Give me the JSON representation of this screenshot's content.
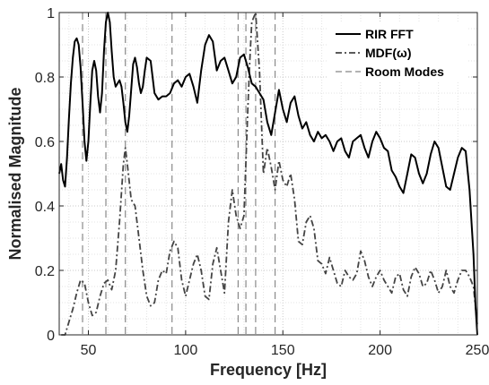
{
  "chart_data": {
    "type": "line",
    "title": "",
    "xlabel": "Frequency [Hz]",
    "ylabel": "Normalised Magnitude",
    "xlim": [
      35,
      250
    ],
    "ylim": [
      0,
      1
    ],
    "xticks": [
      50,
      100,
      150,
      200,
      250
    ],
    "yticks": [
      0,
      0.2,
      0.4,
      0.6,
      0.8,
      1
    ],
    "ytick_labels": [
      "0",
      "0.2",
      "0.4",
      "0.6",
      "0.8",
      "1"
    ],
    "grid": true,
    "grid_style": "dotted minor and major",
    "legend_position": "top-right",
    "room_modes": [
      47,
      59,
      69,
      93,
      127,
      131,
      136,
      146
    ],
    "series": [
      {
        "name": "RIR FFT",
        "style": "solid",
        "color": "#000000",
        "x": [
          35,
          36,
          37,
          38,
          39,
          40,
          41,
          42,
          43,
          44,
          45,
          46,
          47,
          48,
          49,
          50,
          51,
          52,
          53,
          54,
          55,
          56,
          57,
          58,
          59,
          60,
          61,
          62,
          63,
          64,
          65,
          66,
          67,
          68,
          69,
          70,
          71,
          72,
          73,
          74,
          75,
          76,
          77,
          78,
          79,
          80,
          82,
          84,
          86,
          88,
          90,
          92,
          94,
          96,
          98,
          100,
          102,
          104,
          106,
          108,
          110,
          112,
          114,
          116,
          118,
          120,
          122,
          124,
          126,
          128,
          130,
          132,
          134,
          136,
          138,
          140,
          142,
          144,
          146,
          148,
          150,
          152,
          154,
          156,
          158,
          160,
          162,
          164,
          166,
          168,
          170,
          172,
          174,
          176,
          178,
          180,
          182,
          184,
          186,
          188,
          190,
          192,
          194,
          196,
          198,
          200,
          202,
          204,
          206,
          208,
          210,
          212,
          214,
          216,
          218,
          220,
          222,
          224,
          226,
          228,
          230,
          232,
          234,
          236,
          238,
          240,
          242,
          244,
          246,
          248,
          249,
          250
        ],
        "y": [
          0.5,
          0.53,
          0.48,
          0.46,
          0.55,
          0.67,
          0.78,
          0.86,
          0.91,
          0.92,
          0.9,
          0.83,
          0.72,
          0.6,
          0.54,
          0.6,
          0.72,
          0.82,
          0.85,
          0.82,
          0.74,
          0.69,
          0.75,
          0.88,
          0.97,
          1.0,
          0.97,
          0.88,
          0.8,
          0.77,
          0.78,
          0.79,
          0.77,
          0.72,
          0.66,
          0.63,
          0.68,
          0.76,
          0.84,
          0.86,
          0.83,
          0.78,
          0.75,
          0.77,
          0.82,
          0.86,
          0.85,
          0.75,
          0.73,
          0.74,
          0.74,
          0.75,
          0.78,
          0.79,
          0.77,
          0.8,
          0.81,
          0.77,
          0.72,
          0.82,
          0.9,
          0.93,
          0.91,
          0.82,
          0.85,
          0.86,
          0.82,
          0.78,
          0.8,
          0.86,
          0.87,
          0.83,
          0.78,
          0.77,
          0.75,
          0.73,
          0.66,
          0.62,
          0.69,
          0.76,
          0.7,
          0.66,
          0.72,
          0.74,
          0.68,
          0.64,
          0.66,
          0.62,
          0.6,
          0.63,
          0.61,
          0.62,
          0.6,
          0.57,
          0.6,
          0.61,
          0.57,
          0.55,
          0.6,
          0.61,
          0.62,
          0.58,
          0.55,
          0.6,
          0.63,
          0.61,
          0.58,
          0.57,
          0.51,
          0.49,
          0.46,
          0.44,
          0.5,
          0.56,
          0.55,
          0.5,
          0.47,
          0.5,
          0.56,
          0.6,
          0.58,
          0.52,
          0.46,
          0.45,
          0.5,
          0.55,
          0.58,
          0.57,
          0.45,
          0.25,
          0.1,
          0.0
        ]
      },
      {
        "name": "MDF(ω)",
        "style": "dashdot",
        "color": "#444444",
        "x": [
          36,
          38,
          40,
          42,
          44,
          46,
          48,
          50,
          52,
          54,
          56,
          58,
          60,
          62,
          64,
          66,
          68,
          69,
          70,
          72,
          74,
          76,
          78,
          80,
          82,
          84,
          86,
          88,
          90,
          92,
          94,
          96,
          98,
          100,
          102,
          104,
          106,
          108,
          110,
          112,
          114,
          116,
          118,
          120,
          122,
          124,
          126,
          128,
          130,
          132,
          133,
          134,
          136,
          138,
          140,
          142,
          144,
          146,
          148,
          150,
          152,
          154,
          156,
          158,
          160,
          162,
          164,
          166,
          168,
          170,
          172,
          174,
          176,
          178,
          180,
          182,
          184,
          186,
          188,
          190,
          192,
          194,
          196,
          198,
          200,
          202,
          204,
          206,
          208,
          210,
          212,
          214,
          216,
          218,
          220,
          222,
          224,
          226,
          228,
          230,
          232,
          234,
          236,
          238,
          240,
          242,
          244,
          246,
          248,
          250
        ],
        "y": [
          0.0,
          0.0,
          0.04,
          0.08,
          0.13,
          0.17,
          0.16,
          0.1,
          0.06,
          0.07,
          0.12,
          0.16,
          0.17,
          0.14,
          0.2,
          0.35,
          0.53,
          0.58,
          0.53,
          0.42,
          0.4,
          0.3,
          0.2,
          0.12,
          0.09,
          0.1,
          0.17,
          0.2,
          0.19,
          0.26,
          0.29,
          0.27,
          0.17,
          0.12,
          0.17,
          0.22,
          0.25,
          0.2,
          0.12,
          0.11,
          0.22,
          0.27,
          0.2,
          0.13,
          0.35,
          0.45,
          0.37,
          0.33,
          0.37,
          0.7,
          0.85,
          0.97,
          1.0,
          0.82,
          0.5,
          0.58,
          0.52,
          0.45,
          0.54,
          0.48,
          0.46,
          0.5,
          0.42,
          0.29,
          0.28,
          0.35,
          0.37,
          0.33,
          0.23,
          0.22,
          0.19,
          0.24,
          0.2,
          0.16,
          0.15,
          0.2,
          0.18,
          0.17,
          0.19,
          0.26,
          0.23,
          0.18,
          0.15,
          0.18,
          0.2,
          0.17,
          0.15,
          0.13,
          0.18,
          0.19,
          0.14,
          0.12,
          0.18,
          0.21,
          0.19,
          0.15,
          0.16,
          0.2,
          0.17,
          0.13,
          0.15,
          0.2,
          0.15,
          0.13,
          0.17,
          0.2,
          0.2,
          0.18,
          0.15,
          0.03
        ]
      },
      {
        "name": "Room Modes",
        "style": "dashed",
        "color": "#9a9a9a"
      }
    ]
  }
}
